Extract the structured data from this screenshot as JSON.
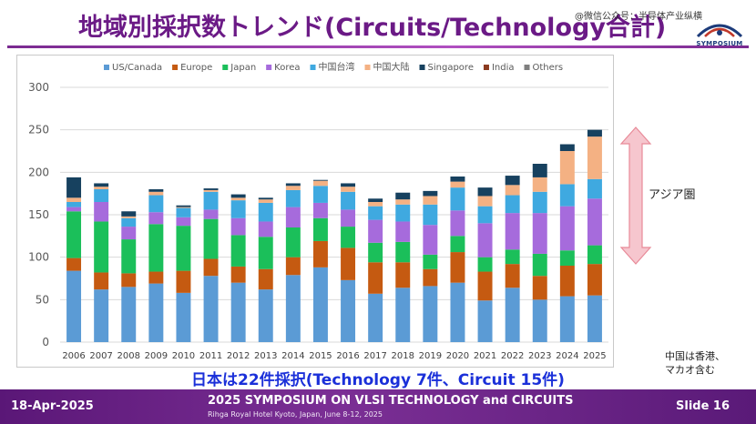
{
  "slide": {
    "title": "地域別採択数トレンド(Circuits/Technology合計)",
    "watermark": "@微信公众号：半导体产业纵横",
    "logo_text": "SYMPOSIUM",
    "side_note": "アジア圏",
    "footnote_line1": "中国は香港、",
    "footnote_line2": "マカオ含む",
    "summary": "日本は22件採択(Technology 7件、Circuit 15件)",
    "footer_date": "18-Apr-2025",
    "footer_title": "2025 SYMPOSIUM ON VLSI TECHNOLOGY and CIRCUITS",
    "footer_sub": "Rihga Royal Hotel Kyoto, Japan, June 8-12, 2025",
    "footer_slide": "Slide 16",
    "colors": {
      "title": "#6b1a86",
      "summary": "#1b30d9",
      "footer": "#6a2185",
      "arrow_fill": "#f6c6ce",
      "arrow_stroke": "#e88a98"
    }
  },
  "chart_data": {
    "type": "bar",
    "stacked": true,
    "categories": [
      "2006",
      "2007",
      "2008",
      "2009",
      "2010",
      "2011",
      "2012",
      "2013",
      "2014",
      "2015",
      "2016",
      "2017",
      "2018",
      "2019",
      "2020",
      "2021",
      "2022",
      "2023",
      "2024",
      "2025"
    ],
    "ylim": [
      0,
      300
    ],
    "yticks": [
      0,
      50,
      100,
      150,
      200,
      250,
      300
    ],
    "grid": true,
    "legend_position": "top",
    "series": [
      {
        "name": "US/Canada",
        "color": "#5b9bd5",
        "values": [
          84,
          62,
          65,
          69,
          58,
          78,
          70,
          62,
          79,
          88,
          73,
          57,
          64,
          66,
          70,
          49,
          64,
          50,
          54,
          55
        ]
      },
      {
        "name": "Europe",
        "color": "#c55a11",
        "values": [
          15,
          20,
          16,
          14,
          26,
          20,
          19,
          24,
          21,
          31,
          38,
          37,
          30,
          20,
          36,
          34,
          28,
          28,
          36,
          37
        ]
      },
      {
        "name": "Japan",
        "color": "#1bbf5a",
        "values": [
          55,
          60,
          40,
          56,
          53,
          47,
          37,
          38,
          35,
          27,
          25,
          23,
          24,
          17,
          19,
          17,
          17,
          26,
          18,
          22
        ]
      },
      {
        "name": "Korea",
        "color": "#a66bdc",
        "values": [
          5,
          23,
          15,
          14,
          10,
          11,
          20,
          18,
          24,
          18,
          20,
          27,
          24,
          35,
          30,
          40,
          43,
          48,
          52,
          55
        ]
      },
      {
        "name": "中国台湾",
        "color": "#3fa9e0",
        "values": [
          6,
          15,
          10,
          20,
          11,
          21,
          21,
          22,
          20,
          20,
          21,
          16,
          20,
          24,
          27,
          20,
          21,
          25,
          26,
          23
        ]
      },
      {
        "name": "中国大陆",
        "color": "#f4b183",
        "values": [
          5,
          3,
          2,
          4,
          1,
          2,
          3,
          4,
          5,
          6,
          6,
          5,
          6,
          10,
          7,
          12,
          12,
          17,
          39,
          50
        ]
      },
      {
        "name": "Singapore",
        "color": "#17415f",
        "values": [
          24,
          4,
          6,
          3,
          2,
          2,
          4,
          2,
          3,
          1,
          4,
          4,
          8,
          6,
          6,
          10,
          11,
          16,
          8,
          8
        ]
      },
      {
        "name": "India",
        "color": "#8b3a1f",
        "values": [
          0,
          0,
          0,
          0,
          0,
          0,
          0,
          0,
          0,
          0,
          0,
          0,
          0,
          0,
          0,
          0,
          0,
          0,
          0,
          0
        ]
      },
      {
        "name": "Others",
        "color": "#7f7f7f",
        "values": [
          0,
          0,
          0,
          0,
          0,
          0,
          0,
          0,
          0,
          0,
          0,
          0,
          0,
          0,
          0,
          0,
          0,
          0,
          0,
          0
        ]
      }
    ]
  }
}
